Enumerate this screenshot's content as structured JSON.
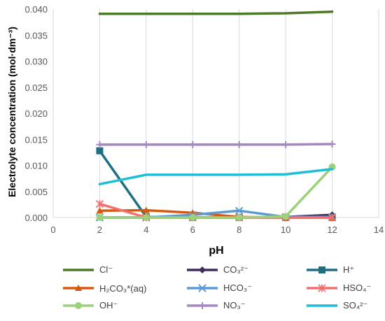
{
  "chart_data": {
    "type": "line",
    "xlabel": "pH",
    "ylabel": "Electrolyte concentration (mol·dm⁻³)",
    "xlim": [
      0,
      14
    ],
    "ylim": [
      0,
      0.04
    ],
    "x_ticks": [
      "0",
      "2",
      "4",
      "6",
      "8",
      "10",
      "12",
      "14"
    ],
    "y_ticks": [
      "0.000",
      "0.005",
      "0.010",
      "0.015",
      "0.020",
      "0.025",
      "0.030",
      "0.035",
      "0.040"
    ],
    "grid": "vertical",
    "legend_position": "bottom",
    "series": [
      {
        "name": "Cl⁻",
        "color": "#4e7a27",
        "marker": "none",
        "x": [
          2,
          4,
          6,
          8,
          10,
          12
        ],
        "y": [
          0.0391,
          0.0391,
          0.0391,
          0.0391,
          0.0392,
          0.0395
        ]
      },
      {
        "name": "CO₃²⁻",
        "color": "#3f2b5e",
        "marker": "diamond",
        "x": [
          2,
          4,
          6,
          8,
          10,
          12
        ],
        "y": [
          0.0,
          0.0,
          0.0,
          0.0,
          0.0001,
          0.0005
        ]
      },
      {
        "name": "H⁺",
        "color": "#1f6f82",
        "marker": "square",
        "x": [
          2,
          4,
          6,
          8,
          10,
          12
        ],
        "y": [
          0.0128,
          0.0001,
          0.0,
          0.0,
          0.0,
          0.0
        ]
      },
      {
        "name": "H₂CO₃*(aq)",
        "color": "#d55a0e",
        "marker": "triangle",
        "x": [
          2,
          4,
          6,
          8,
          10,
          12
        ],
        "y": [
          0.0013,
          0.0014,
          0.0009,
          0.0001,
          0.0,
          0.0
        ]
      },
      {
        "name": "HCO₃⁻",
        "color": "#5b9bd5",
        "marker": "x",
        "x": [
          2,
          4,
          6,
          8,
          10,
          12
        ],
        "y": [
          0.0,
          0.0,
          0.0005,
          0.0013,
          0.0001,
          0.0001
        ]
      },
      {
        "name": "HSO₄⁻",
        "color": "#f07070",
        "marker": "asterisk",
        "x": [
          2,
          4,
          6,
          8,
          10,
          12
        ],
        "y": [
          0.0026,
          0.0,
          0.0,
          0.0,
          0.0,
          0.0
        ]
      },
      {
        "name": "OH⁻",
        "color": "#9bd17a",
        "marker": "circle",
        "x": [
          2,
          4,
          6,
          8,
          10,
          12
        ],
        "y": [
          0.0,
          0.0,
          0.0,
          0.0,
          0.0002,
          0.0097
        ]
      },
      {
        "name": "NO₃⁻",
        "color": "#a686c4",
        "marker": "plus",
        "x": [
          2,
          4,
          6,
          8,
          10,
          12
        ],
        "y": [
          0.014,
          0.014,
          0.014,
          0.014,
          0.014,
          0.0141
        ]
      },
      {
        "name": "SO₄²⁻",
        "color": "#1ebfd6",
        "marker": "none",
        "x": [
          2,
          4,
          6,
          8,
          10,
          12
        ],
        "y": [
          0.0064,
          0.0082,
          0.0082,
          0.0082,
          0.0083,
          0.0093
        ]
      }
    ]
  }
}
